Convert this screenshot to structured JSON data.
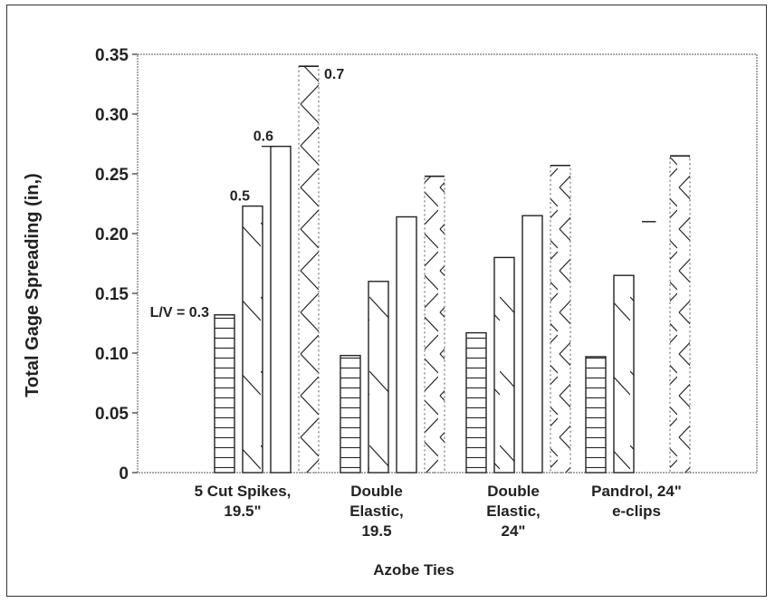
{
  "chart_data": {
    "type": "bar",
    "ylabel": "Total Gage Spreading (in,)",
    "xlabel": "Azobe Ties",
    "ylim": [
      0,
      0.35
    ],
    "yticks": [
      "0",
      "0.05",
      "0.10",
      "0.15",
      "0.20",
      "0.25",
      "0.30",
      "0.35"
    ],
    "categories": [
      "5 Cut Spikes,\n19.5\"",
      "Double\nElastic,\n19.5",
      "Double\nElastic,\n24\"",
      "Pandrol, 24\"\ne-clips"
    ],
    "series": [
      {
        "name": "L/V = 0.3",
        "values": [
          0.132,
          0.098,
          0.117,
          0.097
        ]
      },
      {
        "name": "0.5",
        "values": [
          0.223,
          0.16,
          0.18,
          0.165
        ]
      },
      {
        "name": "0.6",
        "values": [
          0.273,
          0.214,
          0.215,
          0.21
        ]
      },
      {
        "name": "0.7",
        "values": [
          0.34,
          0.248,
          0.257,
          0.265
        ]
      }
    ],
    "bar_labels": [
      "L/V = 0.3",
      "0.5",
      "0.6",
      "0.7"
    ],
    "grid": false,
    "legend": "none"
  }
}
